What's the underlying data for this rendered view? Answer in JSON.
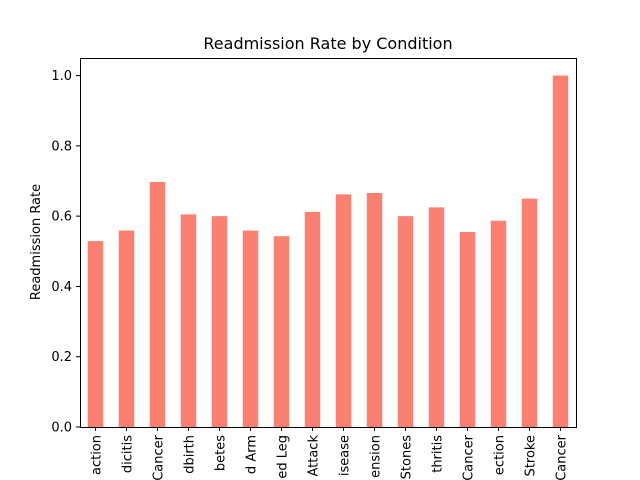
{
  "chart_data": {
    "type": "bar",
    "title": "Readmission Rate by Condition",
    "ylabel": "Readmission Rate",
    "xlabel": "",
    "categories": [
      "action",
      "dicitis",
      "Cancer",
      "dbirth",
      "betes",
      "d Arm",
      "ed Leg",
      "Attack",
      "isease",
      "ension",
      "Stones",
      "thritis",
      "Cancer",
      "ection",
      "Stroke",
      "Cancer"
    ],
    "values": [
      0.529,
      0.559,
      0.697,
      0.605,
      0.6,
      0.559,
      0.543,
      0.612,
      0.662,
      0.666,
      0.6,
      0.625,
      0.555,
      0.587,
      0.65,
      1.0
    ],
    "yticks": [
      "0.0",
      "0.2",
      "0.4",
      "0.6",
      "0.8",
      "1.0"
    ],
    "ylim": [
      0,
      1.05
    ],
    "bar_color": "#fa8072",
    "grid": false,
    "legend": "none"
  }
}
